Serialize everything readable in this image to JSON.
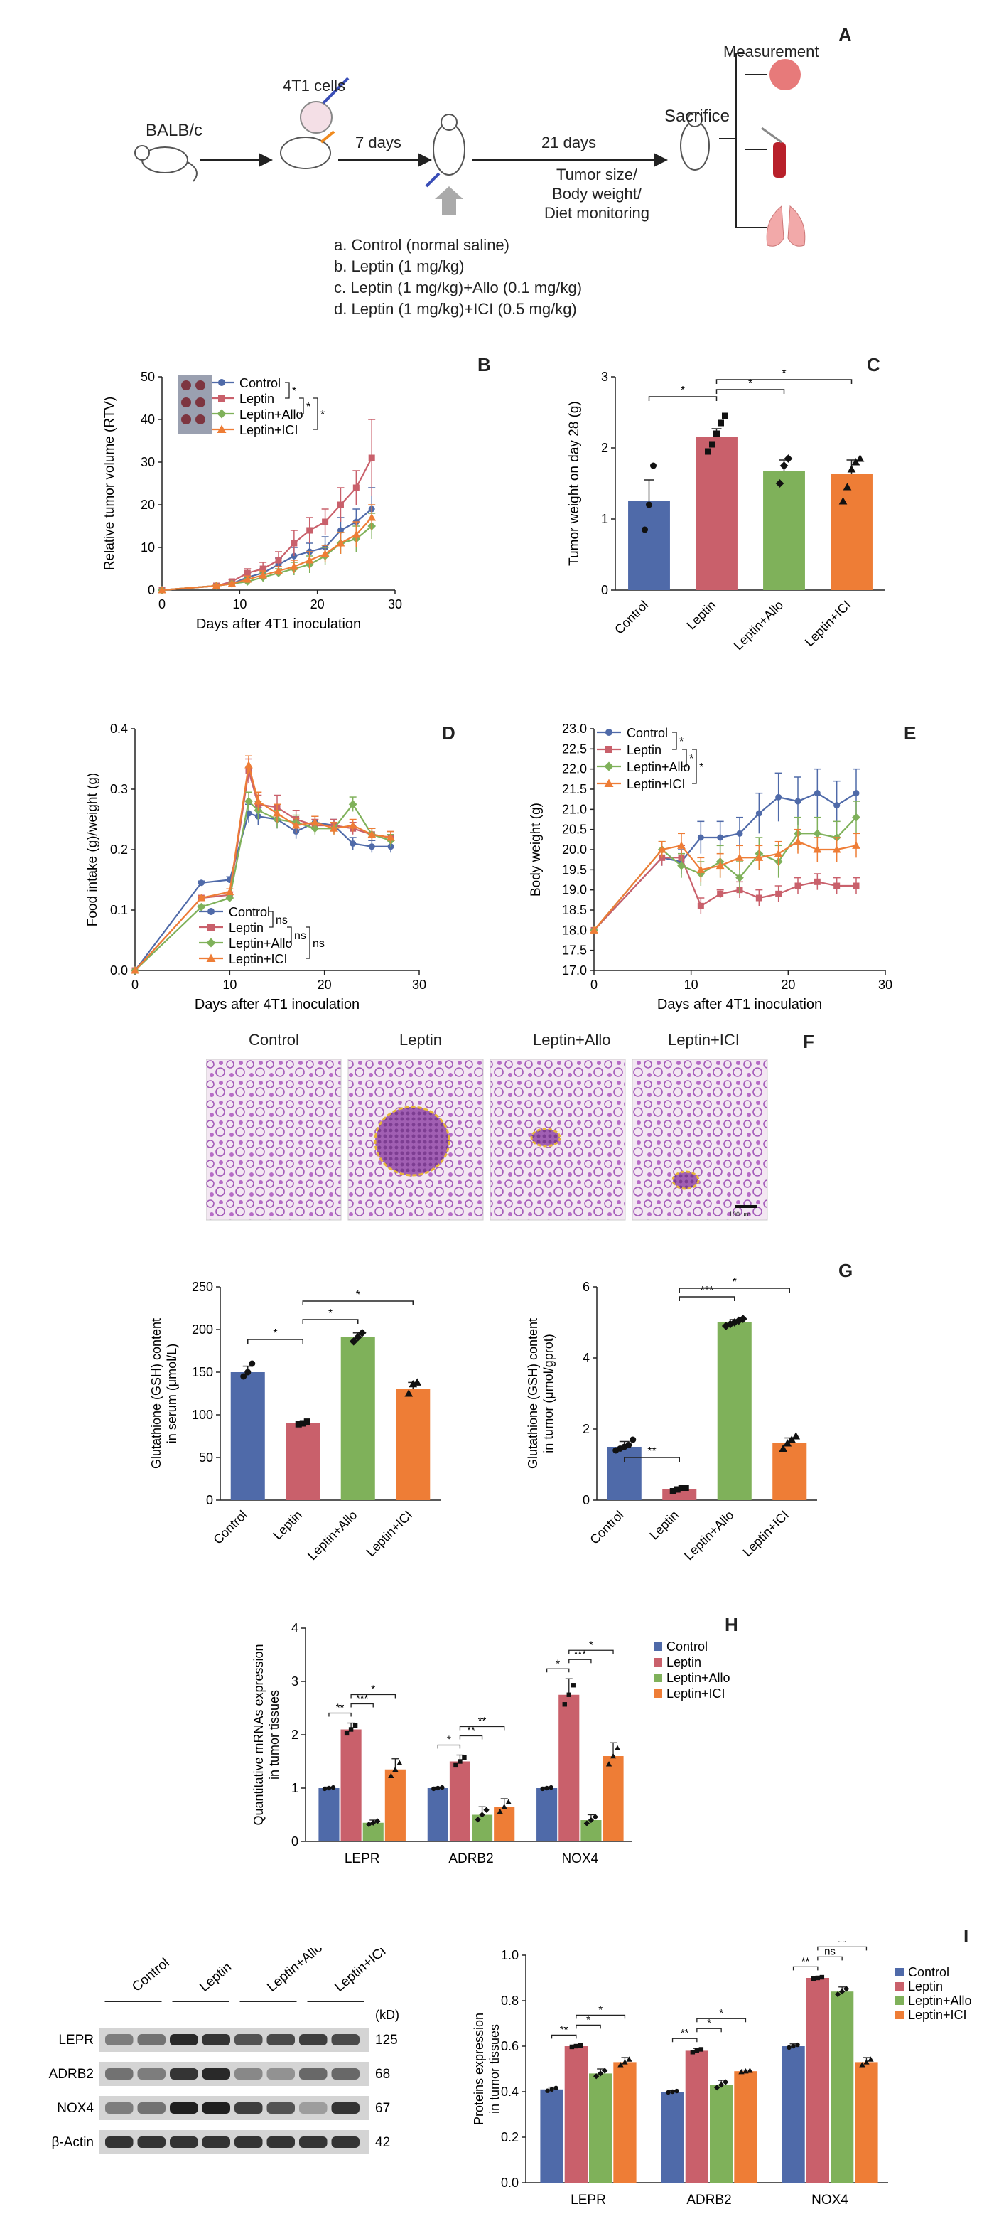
{
  "panels": {
    "A": "A",
    "B": "B",
    "C": "C",
    "D": "D",
    "E": "E",
    "F": "F",
    "G": "G",
    "H": "H",
    "I": "I"
  },
  "colors": {
    "control": "#4f6aa9",
    "leptin": "#c9606b",
    "allo": "#7fb15a",
    "ici": "#ee7d36"
  },
  "schematic": {
    "mouse_strain": "BALB/c",
    "cells": "4T1 cells",
    "interval1": "7 days",
    "interval2": "21 days",
    "endpoint": "Sacrifice",
    "measurement": "Measurement",
    "monitoring": [
      "Tumor size/",
      "Body weight/",
      "Diet monitoring"
    ],
    "groups": [
      "a. Control (normal saline)",
      "b. Leptin (1 mg/kg)",
      "c. Leptin (1 mg/kg)+Allo (0.1 mg/kg)",
      "d. Leptin (1 mg/kg)+ICI (0.5 mg/kg)"
    ]
  },
  "group_names": [
    "Control",
    "Leptin",
    "Leptin+Allo",
    "Leptin+ICI"
  ],
  "chart_data": [
    {
      "id": "B",
      "type": "line",
      "xlabel": "Days after 4T1 inoculation",
      "ylabel": "Relative tumor volume (RTV)",
      "xlim": [
        0,
        30
      ],
      "ylim": [
        0,
        50
      ],
      "xticks": [
        0,
        10,
        20,
        30
      ],
      "yticks": [
        0,
        10,
        20,
        30,
        40,
        50
      ],
      "x": [
        0,
        7,
        9,
        11,
        13,
        15,
        17,
        19,
        21,
        23,
        25,
        27
      ],
      "series": [
        {
          "name": "Control",
          "values": [
            0,
            1,
            1.5,
            3,
            4,
            6,
            8,
            9,
            10,
            14,
            16,
            19
          ],
          "err": [
            0,
            0.3,
            0.4,
            1,
            1,
            1.5,
            2,
            2,
            2.5,
            3,
            3,
            5
          ]
        },
        {
          "name": "Leptin",
          "values": [
            0,
            1,
            2,
            4,
            5,
            7,
            11,
            14,
            16,
            20,
            24,
            31
          ],
          "err": [
            0,
            0.3,
            0.5,
            1,
            1.5,
            2,
            3,
            3,
            3,
            4,
            4,
            9
          ]
        },
        {
          "name": "Leptin+Allo",
          "values": [
            0,
            1,
            1.5,
            2,
            3,
            4,
            5,
            6,
            8,
            11,
            12,
            15
          ],
          "err": [
            0,
            0.3,
            0.4,
            0.8,
            1,
            1,
            1.5,
            2,
            2,
            2.5,
            3,
            3
          ]
        },
        {
          "name": "Leptin+ICI",
          "values": [
            0,
            1,
            1.5,
            2.5,
            3.5,
            4.5,
            5.5,
            7,
            8.5,
            11,
            13,
            17
          ],
          "err": [
            0,
            0.3,
            0.4,
            0.8,
            1,
            1,
            1.5,
            2,
            2,
            2.5,
            3,
            3
          ]
        }
      ],
      "sig": [
        "*",
        "*",
        "*"
      ]
    },
    {
      "id": "C",
      "type": "bar",
      "categories": [
        "Control",
        "Leptin",
        "Leptin+Allo",
        "Leptin+ICI"
      ],
      "values": [
        1.25,
        2.15,
        1.68,
        1.63
      ],
      "err": [
        0.3,
        0.12,
        0.15,
        0.2
      ],
      "ylabel": "Tumor weight on day 28 (g)",
      "ylim": [
        0,
        3
      ],
      "yticks": [
        0,
        1,
        2,
        3
      ],
      "points": [
        [
          0.85,
          1.2,
          1.75
        ],
        [
          1.95,
          2.05,
          2.2,
          2.35,
          2.45
        ],
        [
          1.5,
          1.75,
          1.85
        ],
        [
          1.25,
          1.45,
          1.7,
          1.8,
          1.85
        ]
      ],
      "sig": [
        {
          "a": 0,
          "b": 1,
          "t": "*"
        },
        {
          "a": 1,
          "b": 2,
          "t": "*"
        },
        {
          "a": 1,
          "b": 3,
          "t": "*"
        }
      ]
    },
    {
      "id": "D",
      "type": "line",
      "xlabel": "Days after 4T1 inoculation",
      "ylabel": "Food intake (g)/weight (g)",
      "xlim": [
        0,
        30
      ],
      "ylim": [
        0,
        0.4
      ],
      "xticks": [
        0,
        10,
        20,
        30
      ],
      "yticks": [
        0,
        0.1,
        0.2,
        0.3,
        0.4
      ],
      "x": [
        0,
        7,
        10,
        12,
        13,
        15,
        17,
        19,
        21,
        23,
        25,
        27
      ],
      "series": [
        {
          "name": "Control",
          "values": [
            0,
            0.145,
            0.15,
            0.26,
            0.255,
            0.25,
            0.23,
            0.245,
            0.24,
            0.21,
            0.205,
            0.205
          ],
          "err": [
            0,
            0.003,
            0.005,
            0.015,
            0.015,
            0.015,
            0.012,
            0.01,
            0.01,
            0.01,
            0.01,
            0.01
          ]
        },
        {
          "name": "Leptin",
          "values": [
            0,
            0.12,
            0.125,
            0.33,
            0.275,
            0.27,
            0.25,
            0.24,
            0.24,
            0.235,
            0.225,
            0.22
          ],
          "err": [
            0,
            0.003,
            0.005,
            0.02,
            0.015,
            0.02,
            0.015,
            0.01,
            0.01,
            0.01,
            0.01,
            0.01
          ]
        },
        {
          "name": "Leptin+Allo",
          "values": [
            0,
            0.105,
            0.12,
            0.28,
            0.265,
            0.25,
            0.245,
            0.235,
            0.235,
            0.275,
            0.225,
            0.215
          ],
          "err": [
            0,
            0.003,
            0.005,
            0.015,
            0.015,
            0.015,
            0.012,
            0.01,
            0.01,
            0.012,
            0.01,
            0.01
          ]
        },
        {
          "name": "Leptin+ICI",
          "values": [
            0,
            0.12,
            0.13,
            0.34,
            0.28,
            0.26,
            0.24,
            0.245,
            0.235,
            0.24,
            0.225,
            0.22
          ],
          "err": [
            0,
            0.003,
            0.005,
            0.015,
            0.015,
            0.015,
            0.012,
            0.01,
            0.01,
            0.01,
            0.01,
            0.01
          ]
        }
      ],
      "sig": [
        "ns",
        "ns",
        "ns"
      ]
    },
    {
      "id": "E",
      "type": "line",
      "xlabel": "Days after 4T1 inoculation",
      "ylabel": "Body weight (g)",
      "xlim": [
        0,
        30
      ],
      "ylim": [
        17,
        23
      ],
      "xticks": [
        0,
        10,
        20,
        30
      ],
      "yticks": [
        17,
        17.5,
        18,
        18.5,
        19,
        19.5,
        20,
        20.5,
        21,
        21.5,
        22,
        22.5,
        23
      ],
      "x": [
        0,
        7,
        9,
        11,
        13,
        15,
        17,
        19,
        21,
        23,
        25,
        27
      ],
      "series": [
        {
          "name": "Control",
          "values": [
            18,
            19.8,
            19.7,
            20.3,
            20.3,
            20.4,
            20.9,
            21.3,
            21.2,
            21.4,
            21.1,
            21.4
          ],
          "err": [
            0,
            0.2,
            0.3,
            0.4,
            0.4,
            0.4,
            0.5,
            0.6,
            0.6,
            0.6,
            0.6,
            0.6
          ]
        },
        {
          "name": "Leptin",
          "values": [
            18,
            19.8,
            19.8,
            18.6,
            18.9,
            19.0,
            18.8,
            18.9,
            19.1,
            19.2,
            19.1,
            19.1
          ],
          "err": [
            0,
            0.2,
            0.3,
            0.2,
            0.1,
            0.2,
            0.2,
            0.2,
            0.2,
            0.2,
            0.2,
            0.2
          ]
        },
        {
          "name": "Leptin+Allo",
          "values": [
            18,
            20.0,
            19.6,
            19.4,
            19.7,
            19.3,
            19.9,
            19.7,
            20.4,
            20.4,
            20.3,
            20.8
          ],
          "err": [
            0,
            0.2,
            0.3,
            0.3,
            0.4,
            0.4,
            0.4,
            0.4,
            0.4,
            0.4,
            0.4,
            0.4
          ]
        },
        {
          "name": "Leptin+ICI",
          "values": [
            18,
            20.0,
            20.1,
            19.5,
            19.6,
            19.8,
            19.8,
            19.9,
            20.2,
            20.0,
            20.0,
            20.1
          ],
          "err": [
            0,
            0.2,
            0.3,
            0.3,
            0.3,
            0.3,
            0.3,
            0.3,
            0.3,
            0.3,
            0.3,
            0.3
          ]
        }
      ],
      "sig": [
        "*",
        "*",
        "*"
      ]
    },
    {
      "id": "G1",
      "type": "bar",
      "categories": [
        "Control",
        "Leptin",
        "Leptin+Allo",
        "Leptin+ICI"
      ],
      "values": [
        150,
        90,
        191,
        130
      ],
      "err": [
        7,
        2,
        5,
        8
      ],
      "ylabel": "Glutathione (GSH) content in serum (μmol/L)",
      "ylim": [
        0,
        250
      ],
      "yticks": [
        0,
        50,
        100,
        150,
        200,
        250
      ],
      "points": [
        [
          145,
          150,
          160
        ],
        [
          89,
          90,
          92
        ],
        [
          186,
          191,
          196
        ],
        [
          125,
          136,
          138
        ]
      ],
      "sig": [
        {
          "a": 0,
          "b": 1,
          "t": "*"
        },
        {
          "a": 1,
          "b": 2,
          "t": "*"
        },
        {
          "a": 1,
          "b": 3,
          "t": "*"
        }
      ]
    },
    {
      "id": "G2",
      "type": "bar",
      "categories": [
        "Control",
        "Leptin",
        "Leptin+Allo",
        "Leptin+ICI"
      ],
      "values": [
        1.5,
        0.3,
        5.0,
        1.6
      ],
      "err": [
        0.15,
        0.05,
        0.08,
        0.15
      ],
      "ylabel": "Glutathione (GSH) content in tumor (μmol/gprot)",
      "ylim": [
        0,
        6
      ],
      "yticks": [
        0,
        2,
        4,
        6
      ],
      "points": [
        [
          1.4,
          1.45,
          1.5,
          1.55,
          1.7
        ],
        [
          0.25,
          0.3,
          0.35,
          0.35
        ],
        [
          4.9,
          4.95,
          5.0,
          5.05,
          5.1
        ],
        [
          1.45,
          1.6,
          1.7,
          1.8
        ]
      ],
      "sig": [
        {
          "a": 0,
          "b": 1,
          "t": "**"
        },
        {
          "a": 1,
          "b": 2,
          "t": "***"
        },
        {
          "a": 1,
          "b": 3,
          "t": "*"
        }
      ]
    },
    {
      "id": "H",
      "type": "bar",
      "categories": [
        "LEPR",
        "ADRB2",
        "NOX4"
      ],
      "ylabel": "Quantitative mRNAs expression in tumor tissues",
      "ylim": [
        0,
        4
      ],
      "yticks": [
        0,
        1,
        2,
        3,
        4
      ],
      "series": [
        {
          "name": "Control",
          "values": [
            1,
            1,
            1
          ],
          "err": [
            0.02,
            0.02,
            0.02
          ]
        },
        {
          "name": "Leptin",
          "values": [
            2.1,
            1.5,
            2.75
          ],
          "err": [
            0.12,
            0.12,
            0.3
          ]
        },
        {
          "name": "Leptin+Allo",
          "values": [
            0.35,
            0.5,
            0.4
          ],
          "err": [
            0.05,
            0.15,
            0.1
          ]
        },
        {
          "name": "Leptin+ICI",
          "values": [
            1.35,
            0.65,
            1.6
          ],
          "err": [
            0.2,
            0.15,
            0.25
          ]
        }
      ],
      "sig": [
        [
          "**",
          "***",
          "*"
        ],
        [
          "*",
          "**",
          "**"
        ],
        [
          "*",
          "***",
          "*"
        ]
      ]
    },
    {
      "id": "I",
      "type": "bar",
      "categories": [
        "LEPR",
        "ADRB2",
        "NOX4"
      ],
      "ylabel": "Proteins expression in tumor tissues",
      "ylim": [
        0,
        1
      ],
      "yticks": [
        0,
        0.2,
        0.4,
        0.6,
        0.8,
        1.0
      ],
      "series": [
        {
          "name": "Control",
          "values": [
            0.41,
            0.4,
            0.6
          ],
          "err": [
            0.01,
            0.005,
            0.01
          ]
        },
        {
          "name": "Leptin",
          "values": [
            0.6,
            0.58,
            0.9
          ],
          "err": [
            0.005,
            0.01,
            0.005
          ]
        },
        {
          "name": "Leptin+Allo",
          "values": [
            0.48,
            0.43,
            0.84
          ],
          "err": [
            0.02,
            0.02,
            0.02
          ]
        },
        {
          "name": "Leptin+ICI",
          "values": [
            0.53,
            0.49,
            0.53
          ],
          "err": [
            0.02,
            0.005,
            0.02
          ]
        }
      ],
      "sig": [
        [
          "**",
          "*",
          "*"
        ],
        [
          "**",
          "*",
          "*"
        ],
        [
          "**",
          "ns",
          "**"
        ]
      ]
    }
  ],
  "histology": {
    "labels": [
      "Control",
      "Leptin",
      "Leptin+Allo",
      "Leptin+ICI"
    ],
    "scale": "100 μm"
  },
  "western": {
    "lanes": [
      "Control",
      "Leptin",
      "Leptin+Allo",
      "Leptin+ICI"
    ],
    "kd_label": "(kD)",
    "rows": [
      {
        "name": "LEPR",
        "kd": "125"
      },
      {
        "name": "ADRB2",
        "kd": "68"
      },
      {
        "name": "NOX4",
        "kd": "67"
      },
      {
        "name": "β-Actin",
        "kd": "42"
      }
    ],
    "intensity": [
      [
        0.5,
        0.55,
        0.9,
        0.85,
        0.7,
        0.75,
        0.8,
        0.75
      ],
      [
        0.55,
        0.5,
        0.85,
        0.9,
        0.45,
        0.4,
        0.6,
        0.6
      ],
      [
        0.5,
        0.55,
        0.95,
        0.95,
        0.8,
        0.7,
        0.35,
        0.85
      ],
      [
        0.85,
        0.85,
        0.85,
        0.85,
        0.85,
        0.85,
        0.85,
        0.85
      ]
    ]
  }
}
